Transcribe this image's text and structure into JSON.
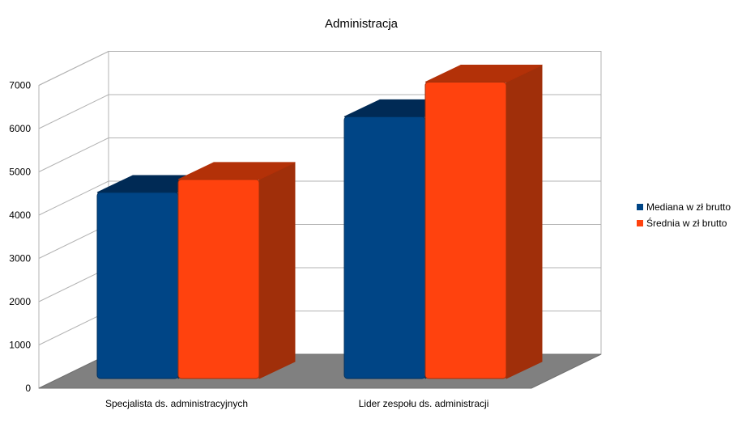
{
  "chart_data": {
    "type": "bar",
    "title": "Administracja",
    "categories": [
      "Specjalista ds. administracyjnych",
      "Lider zespołu ds. administracji"
    ],
    "series": [
      {
        "name": "Mediana w zł brutto",
        "values": [
          4300,
          6050
        ],
        "color": "#004586",
        "side_color": "#00305d",
        "top_color": "#002a55"
      },
      {
        "name": "Średnia w zł brutto",
        "values": [
          4600,
          6850
        ],
        "color": "#ff420e",
        "side_color": "#a02f0a",
        "top_color": "#b33108"
      }
    ],
    "y_ticks": [
      0,
      1000,
      2000,
      3000,
      4000,
      5000,
      6000,
      7000
    ],
    "ylim": [
      0,
      7000
    ],
    "grid": true,
    "legend_position": "right"
  }
}
